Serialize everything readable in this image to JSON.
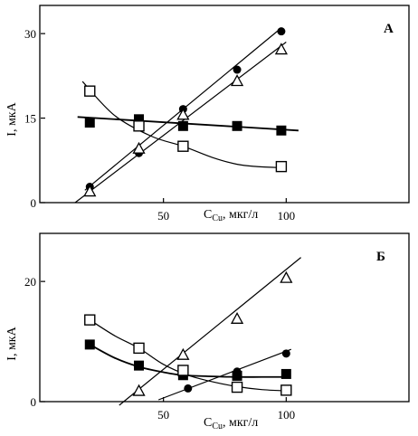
{
  "chart_data": [
    {
      "type": "scatter",
      "panel_label": "А",
      "xlabel": "C",
      "xlabel_sub": "Cu",
      "xlabel_unit": ", мкг/л",
      "ylabel": "I, мкА",
      "xticks": [
        50,
        100
      ],
      "yticks": [
        0,
        15,
        30
      ],
      "xlim": [
        0,
        150
      ],
      "ylim": [
        0,
        35
      ],
      "grid": false,
      "series": [
        {
          "marker": "filled-circle",
          "x": [
            20,
            40,
            58,
            80,
            98
          ],
          "y": [
            2.8,
            8.8,
            16.6,
            23.6,
            30.4
          ],
          "fit": {
            "kind": "line",
            "x": [
              18,
              98
            ],
            "y": [
              2.2,
              31
            ]
          }
        },
        {
          "marker": "open-triangle",
          "x": [
            20,
            40,
            58,
            80,
            98
          ],
          "y": [
            2.0,
            9.6,
            15.6,
            21.6,
            27.2
          ],
          "fit": {
            "kind": "line",
            "x": [
              14,
              100
            ],
            "y": [
              0,
              28.5
            ]
          }
        },
        {
          "marker": "filled-square",
          "x": [
            20,
            40,
            58,
            80,
            98
          ],
          "y": [
            14.2,
            14.8,
            13.6,
            13.6,
            12.8
          ],
          "fit": {
            "kind": "line",
            "x": [
              15,
              105
            ],
            "y": [
              15.2,
              12.8
            ]
          }
        },
        {
          "marker": "open-square",
          "x": [
            20,
            40,
            58,
            98
          ],
          "y": [
            19.8,
            13.6,
            10.0,
            6.4
          ],
          "fit": {
            "kind": "curve",
            "x": [
              17,
              30,
              45,
              58,
              70,
              80,
              88,
              98
            ],
            "y": [
              21.5,
              15.5,
              11.8,
              10.0,
              8.0,
              6.8,
              6.4,
              6.2
            ]
          }
        }
      ]
    },
    {
      "type": "scatter",
      "panel_label": "Б",
      "xlabel": "C",
      "xlabel_sub": "Cu",
      "xlabel_unit": ", мкг/л",
      "ylabel": "I, мкА",
      "xticks": [
        50,
        100
      ],
      "yticks": [
        0,
        20
      ],
      "xlim": [
        0,
        150
      ],
      "ylim": [
        0,
        28
      ],
      "grid": false,
      "series": [
        {
          "marker": "open-triangle",
          "x": [
            40,
            58,
            80,
            100
          ],
          "y": [
            1.8,
            7.8,
            13.8,
            20.6
          ],
          "fit": {
            "kind": "line",
            "x": [
              32,
              106
            ],
            "y": [
              -0.6,
              24
            ]
          }
        },
        {
          "marker": "filled-circle",
          "x": [
            60,
            80,
            100
          ],
          "y": [
            2.2,
            5.0,
            8.0
          ],
          "fit": {
            "kind": "line",
            "x": [
              48,
              102
            ],
            "y": [
              0.3,
              8.7
            ]
          }
        },
        {
          "marker": "filled-square",
          "x": [
            20,
            40,
            58,
            80,
            100
          ],
          "y": [
            9.5,
            6.0,
            4.4,
            4.3,
            4.6
          ],
          "fit": {
            "kind": "curve",
            "x": [
              20,
              30,
              40,
              50,
              58,
              70,
              80,
              90,
              100
            ],
            "y": [
              9.5,
              7.3,
              5.8,
              4.9,
              4.4,
              4.2,
              4.1,
              4.1,
              4.1
            ]
          }
        },
        {
          "marker": "open-square",
          "x": [
            20,
            40,
            58,
            80,
            100
          ],
          "y": [
            13.6,
            8.9,
            5.2,
            2.4,
            1.9
          ],
          "fit": {
            "kind": "curve",
            "x": [
              20,
              30,
              40,
              50,
              60,
              70,
              80,
              90,
              100
            ],
            "y": [
              13.6,
              11.0,
              8.9,
              6.2,
              4.4,
              3.3,
              2.5,
              2.0,
              1.8
            ]
          }
        }
      ]
    }
  ]
}
